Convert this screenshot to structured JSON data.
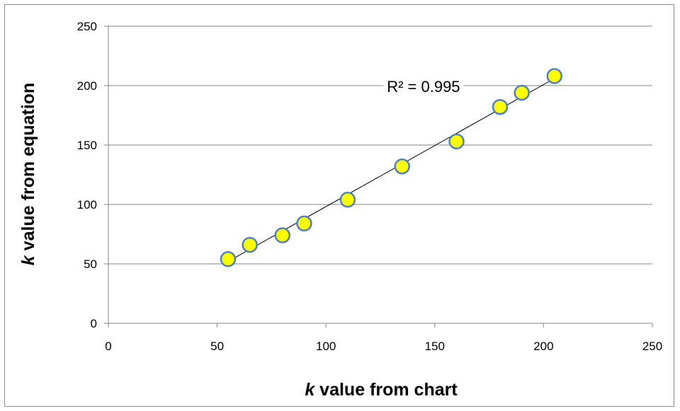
{
  "chart_data": {
    "type": "scatter",
    "title": "",
    "xlabel": {
      "var": "k",
      "rest": " value from chart"
    },
    "ylabel": {
      "var": "k",
      "rest": " value from equation"
    },
    "xlim": [
      0,
      250
    ],
    "ylim": [
      0,
      250
    ],
    "xticks": [
      0,
      50,
      100,
      150,
      200,
      250
    ],
    "yticks": [
      0,
      50,
      100,
      150,
      200,
      250
    ],
    "grid": "horizontal",
    "legend": "none",
    "series": [
      {
        "x": [
          55,
          65,
          80,
          90,
          110,
          135,
          160,
          180,
          190,
          205
        ],
        "y": [
          54,
          66,
          74,
          84,
          104,
          132,
          153,
          182,
          194,
          208
        ],
        "marker_fill": "#ffff00",
        "marker_edge": "#4f81bd"
      }
    ],
    "trendline": {
      "type": "linear",
      "x_range": [
        55,
        205
      ],
      "y_range": [
        52,
        206
      ],
      "color": "#000000"
    },
    "annotation": {
      "text": "R² = 0.995",
      "x": 128,
      "y": 200
    }
  }
}
